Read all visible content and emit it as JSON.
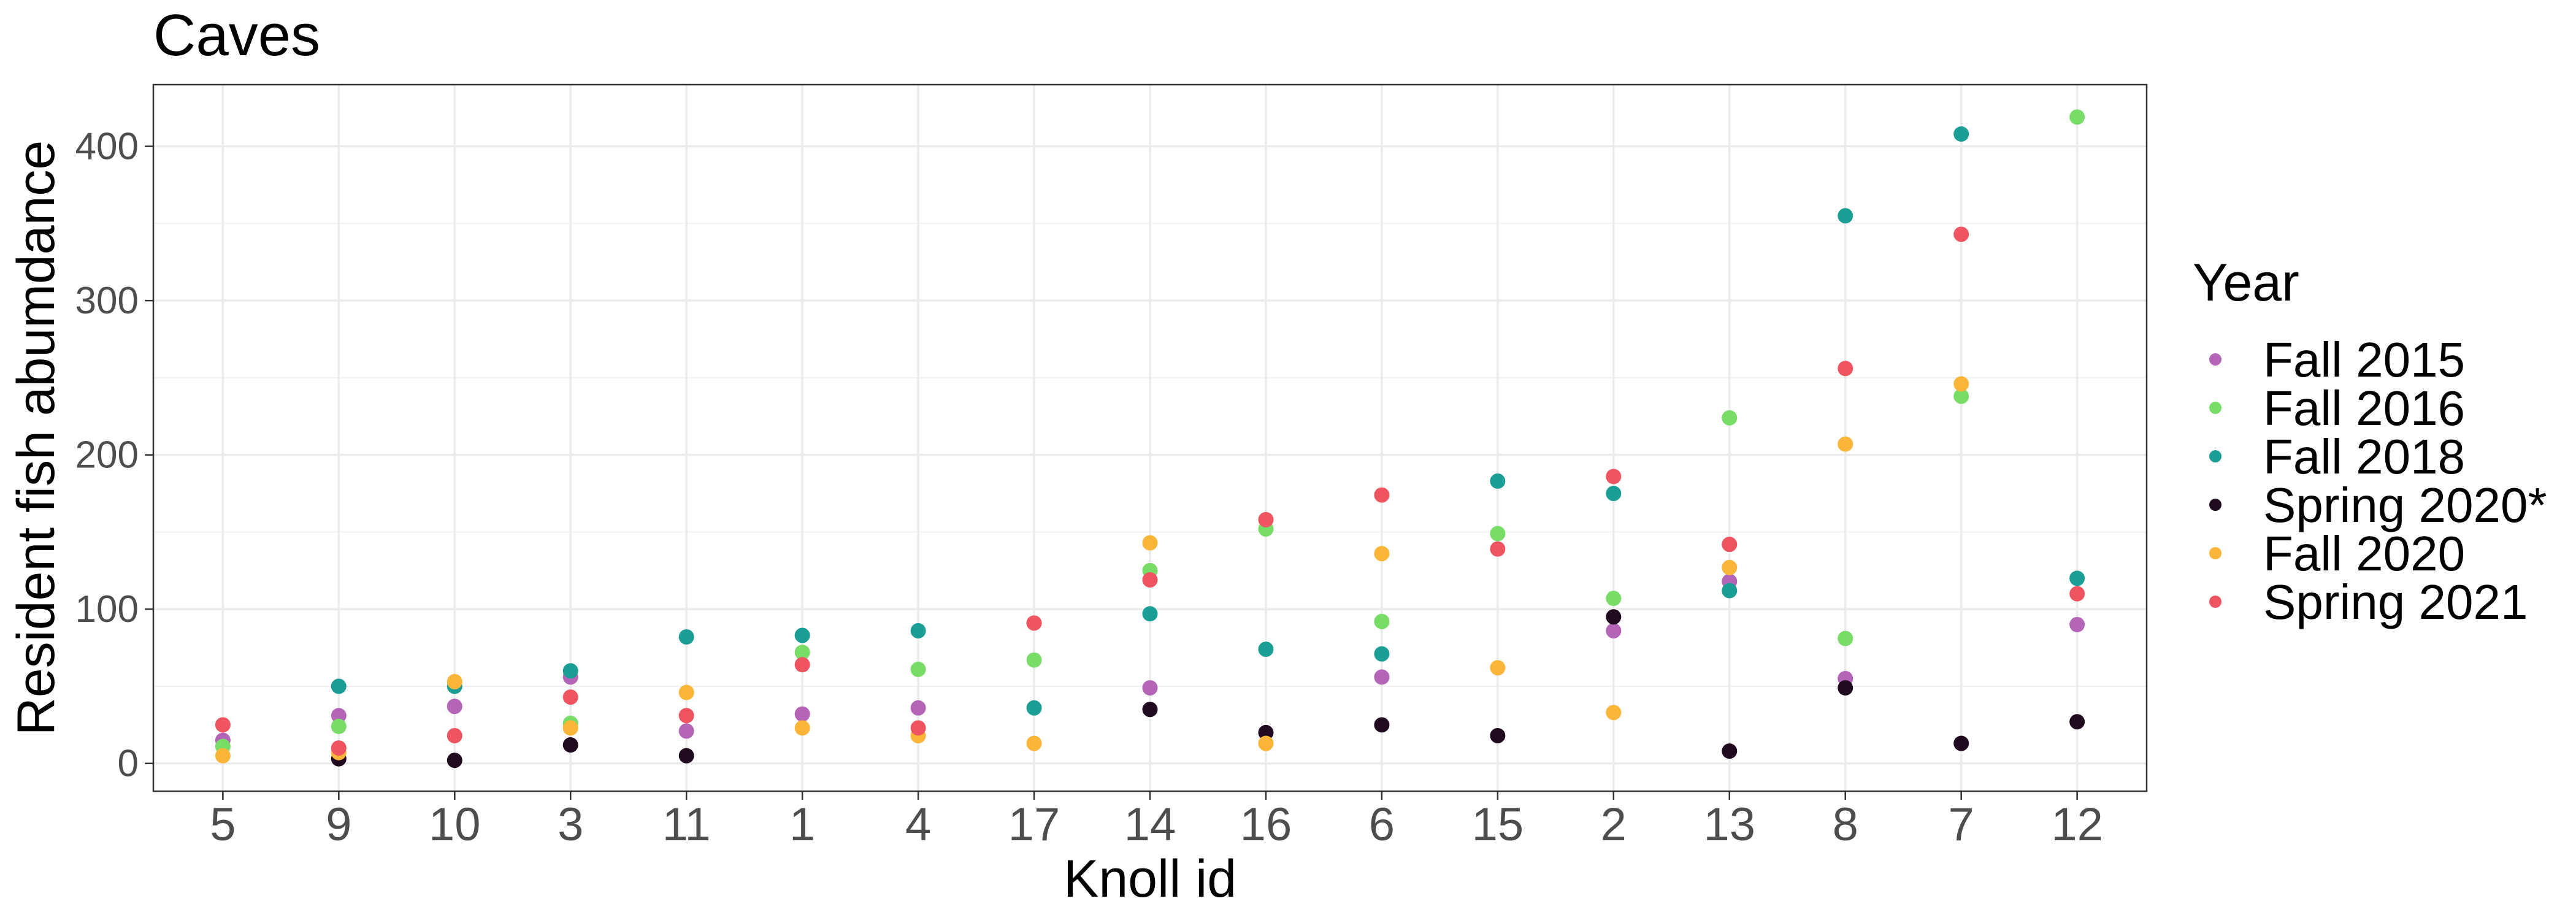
{
  "chart_data": {
    "type": "scatter",
    "title": "Caves",
    "xlabel": "Knoll id",
    "ylabel": "Resident fish abumdance",
    "categories": [
      "5",
      "9",
      "10",
      "3",
      "11",
      "1",
      "4",
      "17",
      "14",
      "16",
      "6",
      "15",
      "2",
      "13",
      "8",
      "7",
      "12"
    ],
    "ylim": [
      -18,
      440
    ],
    "yticks": [
      0,
      100,
      200,
      300,
      400
    ],
    "grid": true,
    "legend_title": "Year",
    "legend_position": "right",
    "series": [
      {
        "name": "Fall 2015",
        "color": "#B565B8",
        "values": [
          15,
          31,
          37,
          56,
          21,
          32,
          36,
          null,
          49,
          null,
          56,
          null,
          86,
          118,
          55,
          null,
          90
        ]
      },
      {
        "name": "Fall 2016",
        "color": "#77DD66",
        "values": [
          11,
          24,
          null,
          26,
          null,
          72,
          61,
          67,
          125,
          152,
          92,
          149,
          107,
          224,
          81,
          238,
          419
        ]
      },
      {
        "name": "Fall 2018",
        "color": "#1A9E96",
        "values": [
          null,
          50,
          50,
          60,
          82,
          83,
          86,
          36,
          97,
          74,
          71,
          183,
          175,
          112,
          355,
          408,
          120
        ]
      },
      {
        "name": "Spring 2020*",
        "color": "#1F0A1F",
        "values": [
          null,
          3,
          2,
          12,
          5,
          null,
          null,
          null,
          35,
          20,
          25,
          18,
          95,
          8,
          49,
          13,
          27
        ]
      },
      {
        "name": "Fall 2020",
        "color": "#FBB538",
        "values": [
          5,
          7,
          53,
          23,
          46,
          23,
          18,
          13,
          143,
          13,
          136,
          62,
          33,
          127,
          207,
          246,
          null
        ]
      },
      {
        "name": "Spring 2021",
        "color": "#EE5561",
        "values": [
          25,
          10,
          18,
          43,
          31,
          64,
          23,
          91,
          119,
          158,
          174,
          139,
          186,
          142,
          256,
          343,
          110
        ]
      }
    ]
  }
}
